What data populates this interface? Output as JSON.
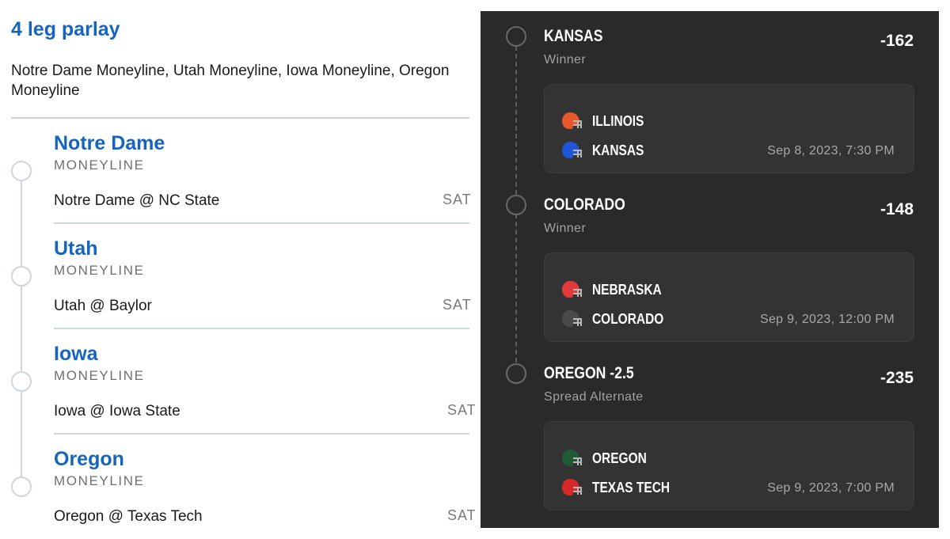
{
  "left_panel": {
    "title": "4 leg parlay",
    "description": "Notre Dame Moneyline, Utah Moneyline, Iowa Moneyline, Oregon Moneyline",
    "legs": [
      {
        "team": "Notre Dame",
        "market": "MONEYLINE",
        "matchup": "Notre Dame @ NC State",
        "day": "SAT"
      },
      {
        "team": "Utah",
        "market": "MONEYLINE",
        "matchup": "Utah @ Baylor",
        "day": "SAT"
      },
      {
        "team": "Iowa",
        "market": "MONEYLINE",
        "matchup": "Iowa @ Iowa State",
        "day": "SAT"
      },
      {
        "team": "Oregon",
        "market": "MONEYLINE",
        "matchup": "Oregon @ Texas Tech",
        "day": "SAT"
      }
    ]
  },
  "right_panel": {
    "picks": [
      {
        "name": "KANSAS",
        "type": "Winner",
        "odds": "-162",
        "game": {
          "away": {
            "name": "ILLINOIS",
            "icon": "helmet-icon",
            "color": "#e8572a"
          },
          "home": {
            "name": "KANSAS",
            "icon": "helmet-icon",
            "color": "#1f55d6"
          },
          "date": "Sep 8, 2023, 7:30 PM"
        }
      },
      {
        "name": "COLORADO",
        "type": "Winner",
        "odds": "-148",
        "game": {
          "away": {
            "name": "NEBRASKA",
            "icon": "helmet-icon",
            "color": "#e23a3a"
          },
          "home": {
            "name": "COLORADO",
            "icon": "helmet-icon",
            "color": "#4a4a4a"
          },
          "date": "Sep 9, 2023, 12:00 PM"
        }
      },
      {
        "name": "OREGON -2.5",
        "type": "Spread Alternate",
        "odds": "-235",
        "game": {
          "away": {
            "name": "OREGON",
            "icon": "helmet-icon",
            "color": "#1f5a34"
          },
          "home": {
            "name": "TEXAS TECH",
            "icon": "helmet-icon",
            "color": "#d62828"
          },
          "date": "Sep 9, 2023, 7:00 PM"
        }
      }
    ]
  }
}
